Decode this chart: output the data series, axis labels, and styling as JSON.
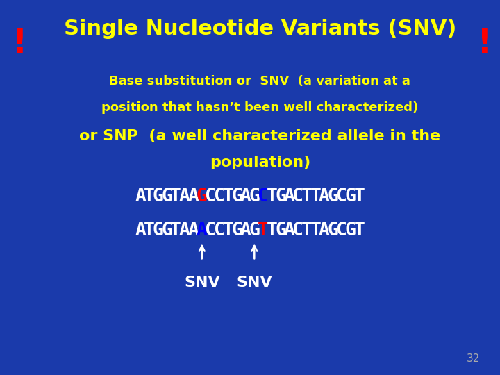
{
  "bg_color": "#1a3aab",
  "title": "Single Nucleotide Variants (SNV)",
  "title_color": "#ffff00",
  "title_fontsize": 22,
  "exclamation_color": "#ff0000",
  "exclamation_fontsize": 36,
  "subtitle_line1": "Base substitution or  SNV  (a variation at a",
  "subtitle_line2": "position that hasn’t been well characterized)",
  "subtitle_color": "#ffff00",
  "subtitle_fontsize": 13,
  "snp_line": "or SNP  (a well characterized allele in the",
  "snp_line2": "population)",
  "snp_color": "#ffff00",
  "snp_fontsize": 16,
  "seq1_parts": [
    {
      "text": "ATGGTAA",
      "color": "#ffffff"
    },
    {
      "text": "G",
      "color": "#ff0000"
    },
    {
      "text": "CCTGAG",
      "color": "#ffffff"
    },
    {
      "text": "C",
      "color": "#0000ff"
    },
    {
      "text": "TGACTTAGCGT",
      "color": "#ffffff"
    }
  ],
  "seq2_parts": [
    {
      "text": "ATGGTAA",
      "color": "#ffffff"
    },
    {
      "text": "A",
      "color": "#0000ff"
    },
    {
      "text": "CCTGAG",
      "color": "#ffffff"
    },
    {
      "text": "T",
      "color": "#ff0000"
    },
    {
      "text": "TGACTTAGCGT",
      "color": "#ffffff"
    }
  ],
  "seq_fontsize": 19,
  "snv_color": "#ffffff",
  "snv_fontsize": 16,
  "page_num": "32",
  "page_num_color": "#aaaaaa",
  "page_num_fontsize": 11
}
